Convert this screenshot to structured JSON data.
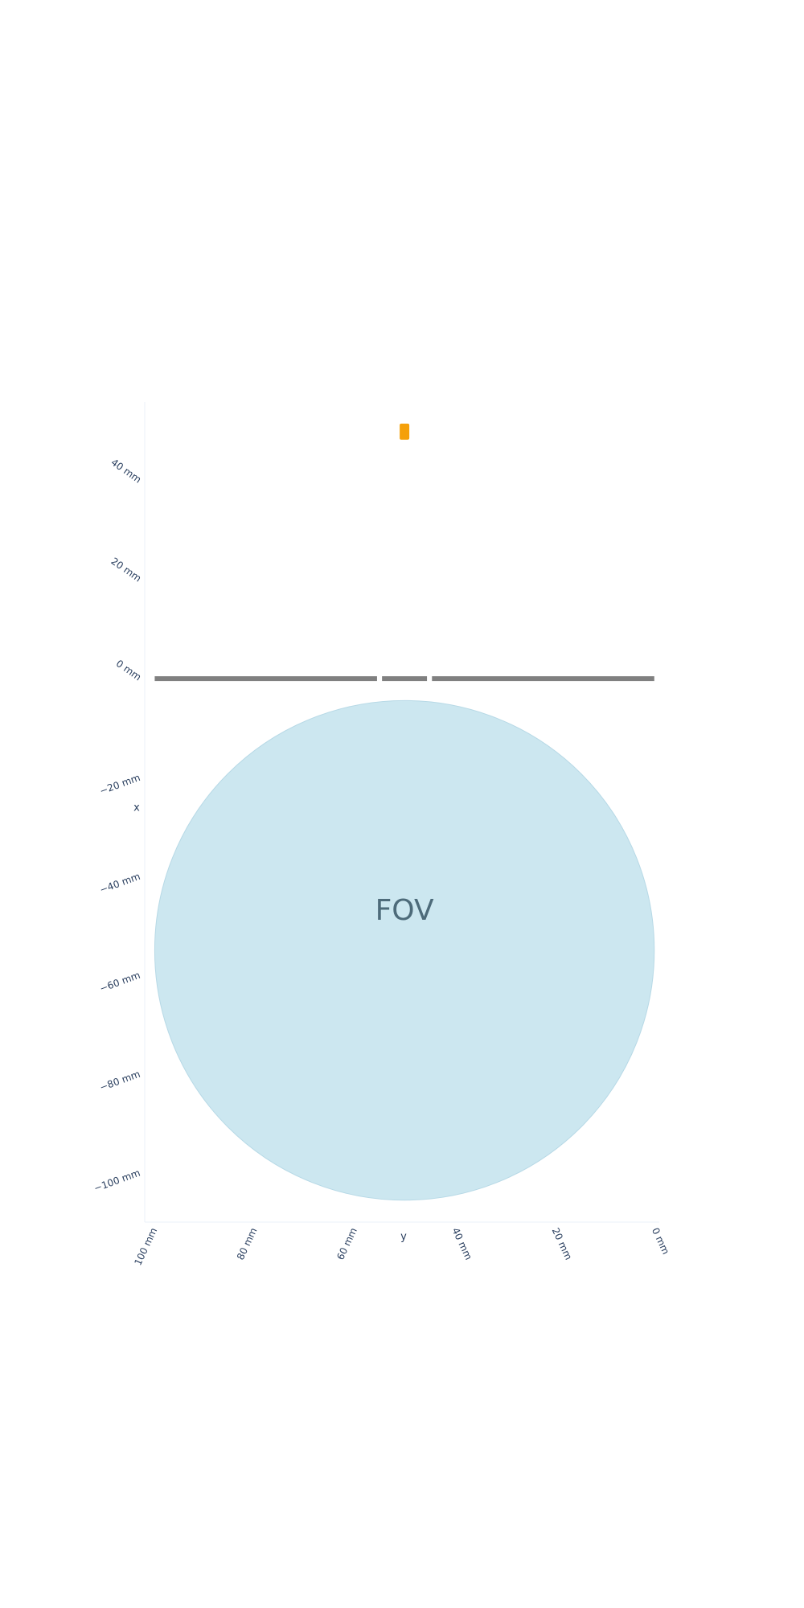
{
  "chart_data": {
    "type": "scatter",
    "title": "",
    "x_axis": {
      "title": "y",
      "range": [
        102,
        -1
      ],
      "ticks": [
        100,
        80,
        60,
        40,
        20,
        0
      ],
      "tick_labels": [
        "100 mm",
        "80 mm",
        "60 mm",
        "40 mm",
        "20 mm",
        "0 mm"
      ]
    },
    "y_axis": {
      "title": "x",
      "range": [
        -110,
        56
      ],
      "ticks": [
        40,
        20,
        0,
        -20,
        -40,
        -60,
        -80,
        -100
      ],
      "tick_labels": [
        "40 mm",
        "20 mm",
        "0 mm",
        "−20 mm",
        "−40 mm",
        "−60 mm",
        "−80 mm",
        "−100 mm"
      ]
    },
    "fov": {
      "label": "FOV",
      "center_y": 50,
      "center_x": -55,
      "radius": 50,
      "color": "#cce7f0"
    },
    "detector": {
      "x": 0,
      "color": "#808080",
      "segments": [
        {
          "y_from": 100,
          "y_to": 55.5
        },
        {
          "y_from": 54.5,
          "y_to": 45.5
        },
        {
          "y_from": 44.5,
          "y_to": 0
        }
      ]
    },
    "source": {
      "y": 50,
      "x": 50,
      "color": "#f5a00a"
    },
    "grid": false
  }
}
